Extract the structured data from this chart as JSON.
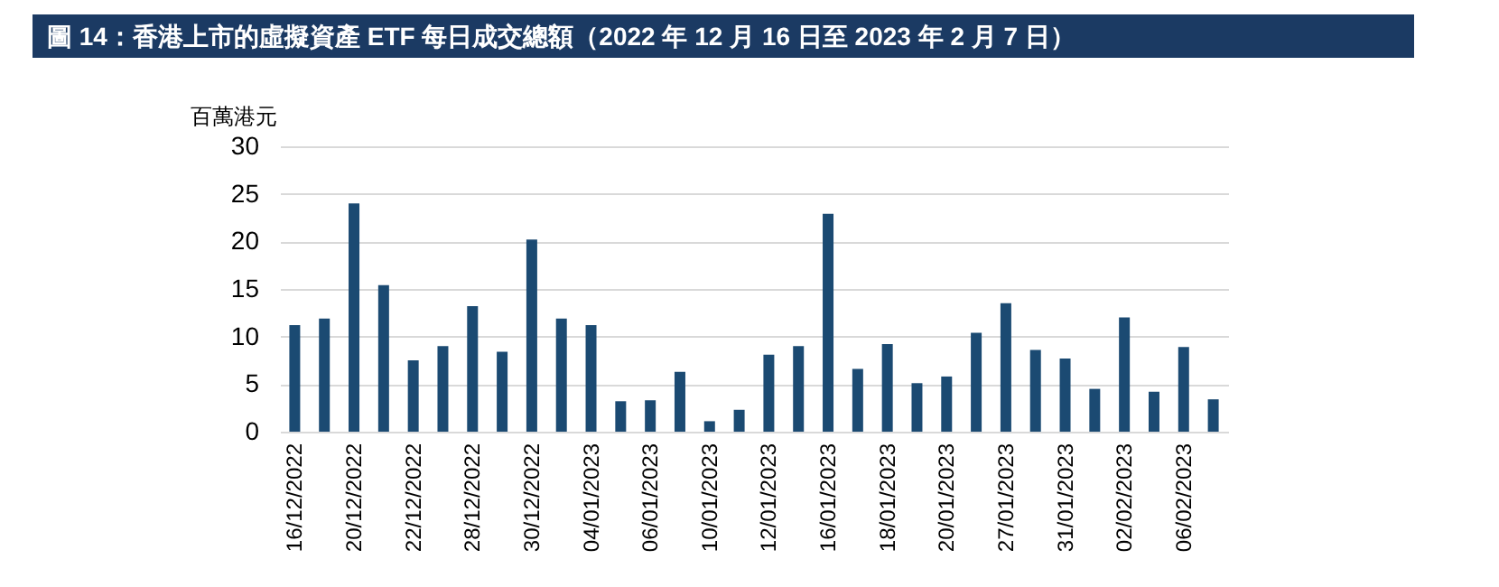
{
  "chart_data": {
    "type": "bar",
    "title": "圖 14：香港上市的虛擬資產 ETF 每日成交總額（2022 年 12 月 16 日至 2023 年 2 月 7 日）",
    "ylabel": "百萬港元",
    "categories": [
      "16/12/2022",
      null,
      "20/12/2022",
      null,
      "22/12/2022",
      null,
      "28/12/2022",
      null,
      "30/12/2022",
      null,
      "04/01/2023",
      null,
      "06/01/2023",
      null,
      "10/01/2023",
      null,
      "12/01/2023",
      null,
      "16/01/2023",
      null,
      "18/01/2023",
      null,
      "20/01/2023",
      null,
      "27/01/2023",
      null,
      "31/01/2023",
      null,
      "02/02/2023",
      null,
      "06/02/2023",
      null
    ],
    "values": [
      11.2,
      11.9,
      24,
      15.4,
      7.5,
      9,
      13.2,
      8.4,
      20.2,
      11.9,
      11.2,
      3.2,
      3.3,
      6.3,
      1.1,
      2.3,
      8.1,
      9,
      22.9,
      6.6,
      9.2,
      5.1,
      5.8,
      10.4,
      13.5,
      8.6,
      7.7,
      4.5,
      12,
      4.2,
      8.9,
      3.4
    ],
    "color": "#1b4a72",
    "ylim": [
      0,
      30
    ],
    "yticks": [
      0,
      5,
      10,
      15,
      20,
      25,
      30
    ],
    "grid": "y"
  }
}
